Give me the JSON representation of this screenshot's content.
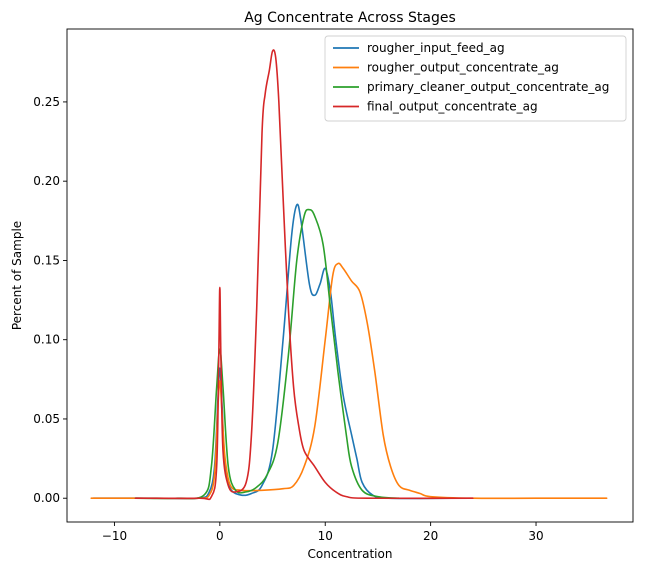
{
  "chart_data": {
    "type": "line",
    "title": "Ag Concentrate Across Stages",
    "xlabel": "Concentration",
    "ylabel": "Percent of Sample",
    "xlim": [
      -14.5,
      39.2
    ],
    "ylim": [
      -0.015,
      0.296
    ],
    "xticks": [
      -10,
      0,
      10,
      20,
      30
    ],
    "xtick_labels": [
      "−10",
      "0",
      "10",
      "20",
      "30"
    ],
    "yticks": [
      0.0,
      0.05,
      0.1,
      0.15,
      0.2,
      0.25
    ],
    "ytick_labels": [
      "0.00",
      "0.05",
      "0.10",
      "0.15",
      "0.20",
      "0.25"
    ],
    "grid": false,
    "legend_position": "upper right",
    "series": [
      {
        "name": "rougher_input_feed_ag",
        "color": "#1f77b4",
        "points": [
          [
            -12,
            0
          ],
          [
            -6,
            0
          ],
          [
            -2,
            0
          ],
          [
            -1,
            0.004
          ],
          [
            -0.5,
            0.02
          ],
          [
            -0.2,
            0.06
          ],
          [
            0,
            0.082
          ],
          [
            0.2,
            0.06
          ],
          [
            0.5,
            0.02
          ],
          [
            1,
            0.006
          ],
          [
            2,
            0.002
          ],
          [
            3,
            0.003
          ],
          [
            4,
            0.008
          ],
          [
            5,
            0.03
          ],
          [
            6,
            0.1
          ],
          [
            6.8,
            0.165
          ],
          [
            7.3,
            0.185
          ],
          [
            7.7,
            0.175
          ],
          [
            8.5,
            0.135
          ],
          [
            9,
            0.128
          ],
          [
            9.5,
            0.135
          ],
          [
            10,
            0.145
          ],
          [
            10.5,
            0.13
          ],
          [
            11,
            0.1
          ],
          [
            11.7,
            0.065
          ],
          [
            12.5,
            0.04
          ],
          [
            13,
            0.025
          ],
          [
            13.5,
            0.01
          ],
          [
            14.5,
            0.002
          ],
          [
            16,
            0
          ],
          [
            22,
            0
          ]
        ]
      },
      {
        "name": "rougher_output_concentrate_ag",
        "color": "#ff7f0e",
        "points": [
          [
            -12.2,
            0
          ],
          [
            -6,
            0
          ],
          [
            -2,
            0
          ],
          [
            -1,
            0.002
          ],
          [
            -0.5,
            0.015
          ],
          [
            -0.2,
            0.055
          ],
          [
            0,
            0.074
          ],
          [
            0.2,
            0.055
          ],
          [
            0.5,
            0.025
          ],
          [
            1,
            0.008
          ],
          [
            2,
            0.005
          ],
          [
            4,
            0.005
          ],
          [
            6,
            0.006
          ],
          [
            7,
            0.008
          ],
          [
            8,
            0.02
          ],
          [
            9,
            0.045
          ],
          [
            10,
            0.1
          ],
          [
            10.7,
            0.14
          ],
          [
            11.2,
            0.148
          ],
          [
            11.7,
            0.145
          ],
          [
            12.5,
            0.137
          ],
          [
            13.3,
            0.13
          ],
          [
            14,
            0.11
          ],
          [
            14.7,
            0.08
          ],
          [
            15.5,
            0.04
          ],
          [
            16.2,
            0.02
          ],
          [
            17,
            0.008
          ],
          [
            18,
            0.005
          ],
          [
            19,
            0.003
          ],
          [
            20,
            0.001
          ],
          [
            24,
            0
          ],
          [
            30,
            0
          ],
          [
            36.7,
            0
          ]
        ]
      },
      {
        "name": "primary_cleaner_output_concentrate_ag",
        "color": "#2ca02c",
        "points": [
          [
            -8,
            0
          ],
          [
            -4,
            0
          ],
          [
            -1.5,
            0.002
          ],
          [
            -0.8,
            0.02
          ],
          [
            -0.3,
            0.07
          ],
          [
            0,
            0.094
          ],
          [
            0.3,
            0.07
          ],
          [
            0.8,
            0.02
          ],
          [
            1.5,
            0.005
          ],
          [
            2.5,
            0.004
          ],
          [
            3.5,
            0.007
          ],
          [
            4.5,
            0.015
          ],
          [
            5.5,
            0.035
          ],
          [
            6.5,
            0.09
          ],
          [
            7.3,
            0.15
          ],
          [
            8,
            0.178
          ],
          [
            8.5,
            0.182
          ],
          [
            9,
            0.178
          ],
          [
            9.8,
            0.16
          ],
          [
            10.5,
            0.12
          ],
          [
            11.2,
            0.08
          ],
          [
            12,
            0.04
          ],
          [
            12.5,
            0.02
          ],
          [
            13.5,
            0.005
          ],
          [
            15,
            0.001
          ],
          [
            17,
            0
          ]
        ]
      },
      {
        "name": "final_output_concentrate_ag",
        "color": "#d62728",
        "points": [
          [
            -8,
            0
          ],
          [
            -2,
            0
          ],
          [
            -0.8,
            0.001
          ],
          [
            -0.3,
            0.02
          ],
          [
            -0.1,
            0.09
          ],
          [
            0,
            0.133
          ],
          [
            0.1,
            0.09
          ],
          [
            0.3,
            0.03
          ],
          [
            0.8,
            0.008
          ],
          [
            1.5,
            0.004
          ],
          [
            2.5,
            0.01
          ],
          [
            3,
            0.04
          ],
          [
            3.5,
            0.12
          ],
          [
            4,
            0.23
          ],
          [
            4.3,
            0.255
          ],
          [
            4.7,
            0.27
          ],
          [
            5,
            0.282
          ],
          [
            5.3,
            0.278
          ],
          [
            5.6,
            0.25
          ],
          [
            6,
            0.19
          ],
          [
            6.5,
            0.12
          ],
          [
            7,
            0.07
          ],
          [
            7.5,
            0.045
          ],
          [
            8,
            0.03
          ],
          [
            9,
            0.02
          ],
          [
            10,
            0.01
          ],
          [
            11,
            0.004
          ],
          [
            12,
            0.001
          ],
          [
            14,
            0
          ],
          [
            24,
            0
          ]
        ]
      }
    ]
  }
}
